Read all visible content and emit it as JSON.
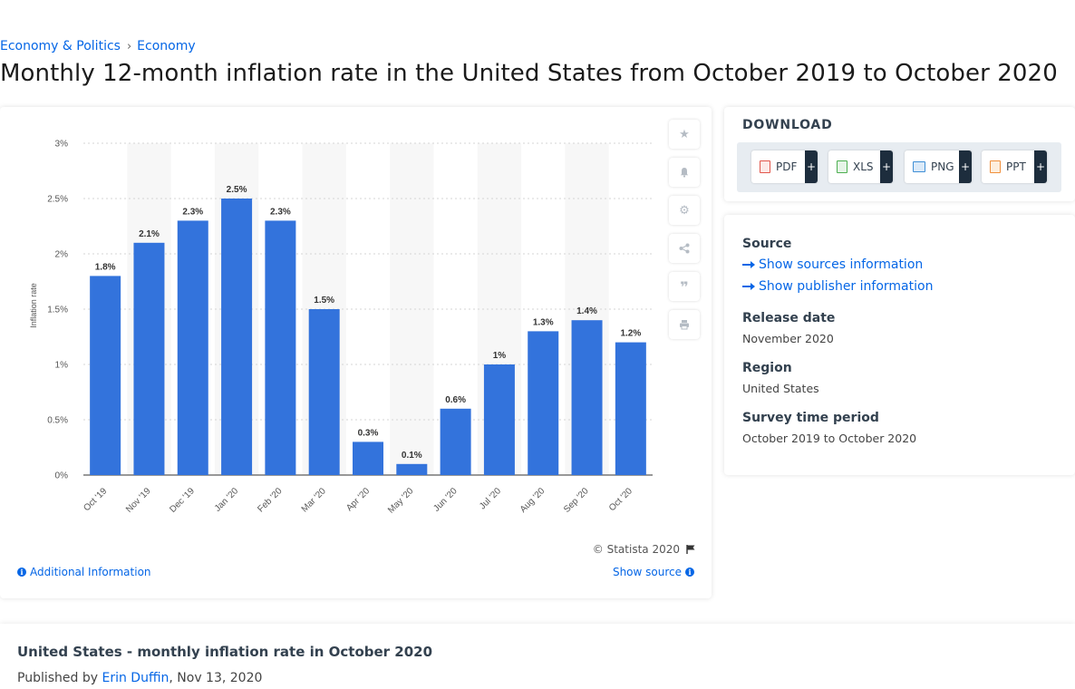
{
  "breadcrumb": {
    "items": [
      "Economy & Politics",
      "Economy"
    ]
  },
  "page": {
    "title": "Monthly 12-month inflation rate in the United States from October 2019 to October 2020"
  },
  "chart_data": {
    "type": "bar",
    "categories": [
      "Oct '19",
      "Nov '19",
      "Dec '19",
      "Jan '20",
      "Feb '20",
      "Mar '20",
      "Apr '20",
      "May '20",
      "Jun '20",
      "Jul '20",
      "Aug '20",
      "Sep '20",
      "Oct '20"
    ],
    "values": [
      1.8,
      2.1,
      2.3,
      2.5,
      2.3,
      1.5,
      0.3,
      0.1,
      0.6,
      1.0,
      1.3,
      1.4,
      1.2
    ],
    "data_labels": [
      "1.8%",
      "2.1%",
      "2.3%",
      "2.5%",
      "2.3%",
      "1.5%",
      "0.3%",
      "0.1%",
      "0.6%",
      "1%",
      "1.3%",
      "1.4%",
      "1.2%"
    ],
    "ylabel": "Inflation rate",
    "ylim": [
      0,
      3
    ],
    "yticks": [
      0,
      0.5,
      1,
      1.5,
      2,
      2.5,
      3
    ],
    "ytick_labels": [
      "0%",
      "0.5%",
      "1%",
      "1.5%",
      "2%",
      "2.5%",
      "3%"
    ],
    "grid": true,
    "bar_color": "#3373dc"
  },
  "chart_footer": {
    "copyright": "© Statista 2020",
    "additional_info": "Additional Information",
    "show_source": "Show source"
  },
  "side_actions": [
    "star-icon",
    "bell-icon",
    "gear-icon",
    "share-icon",
    "quote-icon",
    "print-icon"
  ],
  "download": {
    "title": "DOWNLOAD",
    "buttons": [
      {
        "label": "PDF",
        "color": "#e2574c"
      },
      {
        "label": "XLS",
        "color": "#4caf50"
      },
      {
        "label": "PNG",
        "color": "#3f8fd6"
      },
      {
        "label": "PPT",
        "color": "#f0903c"
      }
    ],
    "plus": "+"
  },
  "meta": {
    "source_label": "Source",
    "sources_link": "Show sources information",
    "publisher_link": "Show publisher information",
    "release_label": "Release date",
    "release_value": "November 2020",
    "region_label": "Region",
    "region_value": "United States",
    "survey_label": "Survey time period",
    "survey_value": "October 2019 to October 2020"
  },
  "related": {
    "title": "United States - monthly inflation rate in October 2020",
    "published_by": "Published by",
    "author": "Erin Duffin",
    "date": ", Nov 13, 2020"
  },
  "colors": {
    "accent": "#0566e6",
    "text": "#1b1b1b"
  }
}
